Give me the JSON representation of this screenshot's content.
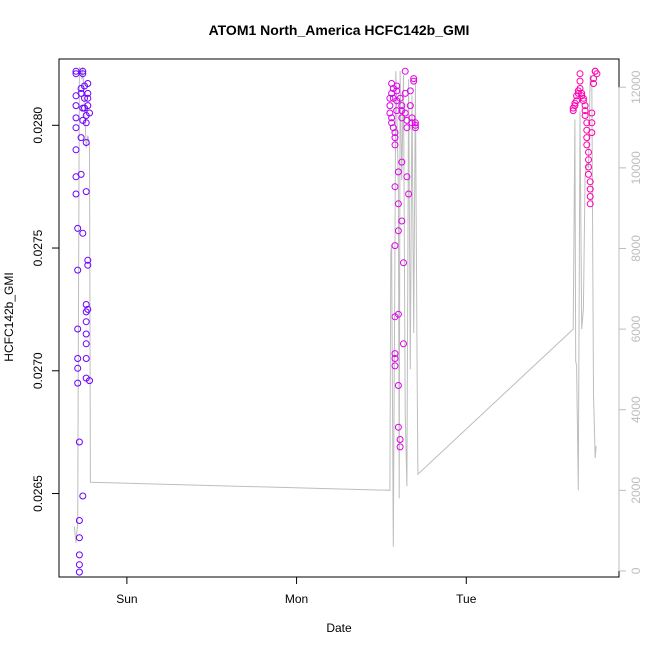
{
  "chart_data": {
    "type": "scatter",
    "title": "ATOM1 North_America HCFC142b_GMI",
    "xlabel": "Date",
    "ylabel": "HCFC142b_GMI",
    "x_tick_labels": [
      "Sun",
      "Mon",
      "Tue"
    ],
    "x_tick_values": [
      1,
      2,
      3
    ],
    "xlim": [
      0.6,
      3.9
    ],
    "ylim": [
      0.02616,
      0.02827
    ],
    "y_ticks": [
      0.0265,
      0.027,
      0.0275,
      0.028
    ],
    "y_tick_labels": [
      "0.0265",
      "0.0270",
      "0.0275",
      "0.0280"
    ],
    "y2lim": [
      -150,
      12700
    ],
    "y2_ticks": [
      0,
      2000,
      4000,
      6000,
      8000,
      10000,
      12000
    ],
    "y2_tick_labels": [
      "0",
      "2000",
      "4000",
      "6000",
      "8000",
      "10000",
      "12000"
    ],
    "colors": {
      "early": "#6a00ff",
      "mid": "#d400ff",
      "late": "#ff00aa",
      "secondary_line": "#bdbdbd"
    },
    "series": [
      {
        "type": "scatter",
        "values": [
          [
            0.7,
            0.02822
          ],
          [
            0.7,
            0.02821
          ],
          [
            0.7,
            0.02812
          ],
          [
            0.7,
            0.02808
          ],
          [
            0.7,
            0.02803
          ],
          [
            0.7,
            0.02799
          ],
          [
            0.7,
            0.0279
          ],
          [
            0.7,
            0.02779
          ],
          [
            0.7,
            0.02772
          ],
          [
            0.71,
            0.02758
          ],
          [
            0.71,
            0.02741
          ],
          [
            0.71,
            0.02717
          ],
          [
            0.71,
            0.02705
          ],
          [
            0.71,
            0.02701
          ],
          [
            0.71,
            0.02695
          ],
          [
            0.72,
            0.02671
          ],
          [
            0.72,
            0.02639
          ],
          [
            0.72,
            0.02632
          ],
          [
            0.72,
            0.02625
          ],
          [
            0.72,
            0.02621
          ],
          [
            0.72,
            0.02618
          ],
          [
            0.73,
            0.0278
          ],
          [
            0.73,
            0.02795
          ],
          [
            0.73,
            0.02813
          ],
          [
            0.73,
            0.02815
          ],
          [
            0.74,
            0.02821
          ],
          [
            0.74,
            0.02822
          ],
          [
            0.74,
            0.02807
          ],
          [
            0.74,
            0.02802
          ],
          [
            0.74,
            0.02756
          ],
          [
            0.74,
            0.02649
          ],
          [
            0.75,
            0.02811
          ],
          [
            0.75,
            0.02816
          ],
          [
            0.75,
            0.02807
          ],
          [
            0.76,
            0.02804
          ],
          [
            0.76,
            0.02801
          ],
          [
            0.76,
            0.02793
          ],
          [
            0.76,
            0.02773
          ],
          [
            0.76,
            0.02727
          ],
          [
            0.76,
            0.02724
          ],
          [
            0.76,
            0.0272
          ],
          [
            0.76,
            0.02715
          ],
          [
            0.76,
            0.02711
          ],
          [
            0.76,
            0.02705
          ],
          [
            0.76,
            0.02697
          ],
          [
            0.77,
            0.02808
          ],
          [
            0.77,
            0.02811
          ],
          [
            0.77,
            0.02817
          ],
          [
            0.77,
            0.02813
          ],
          [
            0.77,
            0.02745
          ],
          [
            0.77,
            0.02743
          ],
          [
            0.77,
            0.02725
          ],
          [
            0.78,
            0.02805
          ],
          [
            0.78,
            0.02696
          ]
        ]
      },
      {
        "type": "scatter",
        "values": [
          [
            2.55,
            0.02811
          ],
          [
            2.55,
            0.02808
          ],
          [
            2.55,
            0.02805
          ],
          [
            2.56,
            0.02803
          ],
          [
            2.56,
            0.02801
          ],
          [
            2.56,
            0.02813
          ],
          [
            2.56,
            0.02817
          ],
          [
            2.57,
            0.02815
          ],
          [
            2.57,
            0.02811
          ],
          [
            2.57,
            0.02799
          ],
          [
            2.58,
            0.02797
          ],
          [
            2.58,
            0.02795
          ],
          [
            2.58,
            0.02792
          ],
          [
            2.58,
            0.02775
          ],
          [
            2.58,
            0.02751
          ],
          [
            2.58,
            0.02722
          ],
          [
            2.58,
            0.02707
          ],
          [
            2.58,
            0.02705
          ],
          [
            2.58,
            0.02702
          ],
          [
            2.59,
            0.02816
          ],
          [
            2.59,
            0.02814
          ],
          [
            2.59,
            0.0281
          ],
          [
            2.59,
            0.02806
          ],
          [
            2.6,
            0.02781
          ],
          [
            2.6,
            0.02768
          ],
          [
            2.6,
            0.02757
          ],
          [
            2.6,
            0.02723
          ],
          [
            2.6,
            0.02694
          ],
          [
            2.6,
            0.02677
          ],
          [
            2.61,
            0.02672
          ],
          [
            2.61,
            0.02669
          ],
          [
            2.61,
            0.02811
          ],
          [
            2.62,
            0.02808
          ],
          [
            2.62,
            0.02806
          ],
          [
            2.62,
            0.02803
          ],
          [
            2.62,
            0.02785
          ],
          [
            2.62,
            0.02761
          ],
          [
            2.63,
            0.02744
          ],
          [
            2.63,
            0.02711
          ],
          [
            2.64,
            0.02822
          ],
          [
            2.64,
            0.02813
          ],
          [
            2.64,
            0.02805
          ],
          [
            2.65,
            0.02802
          ],
          [
            2.65,
            0.02799
          ],
          [
            2.65,
            0.02779
          ],
          [
            2.66,
            0.02772
          ],
          [
            2.67,
            0.02814
          ],
          [
            2.67,
            0.02808
          ],
          [
            2.68,
            0.02803
          ],
          [
            2.68,
            0.02801
          ],
          [
            2.69,
            0.02819
          ],
          [
            2.69,
            0.02818
          ],
          [
            2.7,
            0.028
          ],
          [
            2.7,
            0.02801
          ],
          [
            2.7,
            0.02799
          ]
        ]
      },
      {
        "type": "scatter",
        "values": [
          [
            3.63,
            0.02806
          ],
          [
            3.63,
            0.02807
          ],
          [
            3.64,
            0.02808
          ],
          [
            3.64,
            0.02809
          ],
          [
            3.65,
            0.0281
          ],
          [
            3.65,
            0.02812
          ],
          [
            3.66,
            0.02813
          ],
          [
            3.66,
            0.02814
          ],
          [
            3.67,
            0.02815
          ],
          [
            3.67,
            0.02818
          ],
          [
            3.67,
            0.02821
          ],
          [
            3.68,
            0.02813
          ],
          [
            3.68,
            0.02812
          ],
          [
            3.69,
            0.02811
          ],
          [
            3.69,
            0.0281
          ],
          [
            3.7,
            0.02808
          ],
          [
            3.7,
            0.02806
          ],
          [
            3.7,
            0.02804
          ],
          [
            3.71,
            0.02801
          ],
          [
            3.71,
            0.02798
          ],
          [
            3.71,
            0.02795
          ],
          [
            3.71,
            0.02792
          ],
          [
            3.72,
            0.02789
          ],
          [
            3.72,
            0.02786
          ],
          [
            3.72,
            0.02783
          ],
          [
            3.72,
            0.0278
          ],
          [
            3.73,
            0.02777
          ],
          [
            3.73,
            0.02774
          ],
          [
            3.73,
            0.02771
          ],
          [
            3.73,
            0.02768
          ],
          [
            3.74,
            0.02797
          ],
          [
            3.74,
            0.02801
          ],
          [
            3.74,
            0.02805
          ],
          [
            3.75,
            0.02817
          ],
          [
            3.75,
            0.02819
          ],
          [
            3.76,
            0.02822
          ],
          [
            3.76,
            0.02822
          ],
          [
            3.77,
            0.02821
          ]
        ]
      },
      {
        "type": "line",
        "axis": "right",
        "values": [
          [
            0.69,
            1100
          ],
          [
            0.7,
            700
          ],
          [
            0.71,
            1200
          ],
          [
            0.72,
            12500
          ],
          [
            0.73,
            12400
          ],
          [
            0.735,
            12200
          ],
          [
            0.74,
            12500
          ],
          [
            0.745,
            12000
          ],
          [
            0.75,
            11500
          ],
          [
            0.76,
            10500
          ],
          [
            0.77,
            10800
          ],
          [
            0.78,
            10600
          ],
          [
            0.785,
            2200
          ],
          [
            2.55,
            2000
          ],
          [
            2.555,
            7900
          ],
          [
            2.56,
            8100
          ],
          [
            2.57,
            600
          ],
          [
            2.58,
            8200
          ],
          [
            2.585,
            12400
          ],
          [
            2.59,
            11500
          ],
          [
            2.6,
            9500
          ],
          [
            2.605,
            1800
          ],
          [
            2.61,
            12400
          ],
          [
            2.62,
            9700
          ],
          [
            2.63,
            12300
          ],
          [
            2.64,
            3900
          ],
          [
            2.65,
            2100
          ],
          [
            2.66,
            12200
          ],
          [
            2.67,
            5000
          ],
          [
            2.68,
            11800
          ],
          [
            2.69,
            5900
          ],
          [
            2.7,
            12100
          ],
          [
            2.71,
            5000
          ],
          [
            2.715,
            2400
          ],
          [
            3.63,
            6000
          ],
          [
            3.64,
            11200
          ],
          [
            3.645,
            5200
          ],
          [
            3.65,
            5100
          ],
          [
            3.66,
            2000
          ],
          [
            3.67,
            11400
          ],
          [
            3.68,
            6000
          ],
          [
            3.69,
            6500
          ],
          [
            3.7,
            9800
          ],
          [
            3.71,
            10100
          ],
          [
            3.72,
            10000
          ],
          [
            3.73,
            12300
          ],
          [
            3.74,
            12200
          ],
          [
            3.75,
            4400
          ],
          [
            3.76,
            2800
          ],
          [
            3.765,
            3100
          ]
        ]
      }
    ]
  }
}
